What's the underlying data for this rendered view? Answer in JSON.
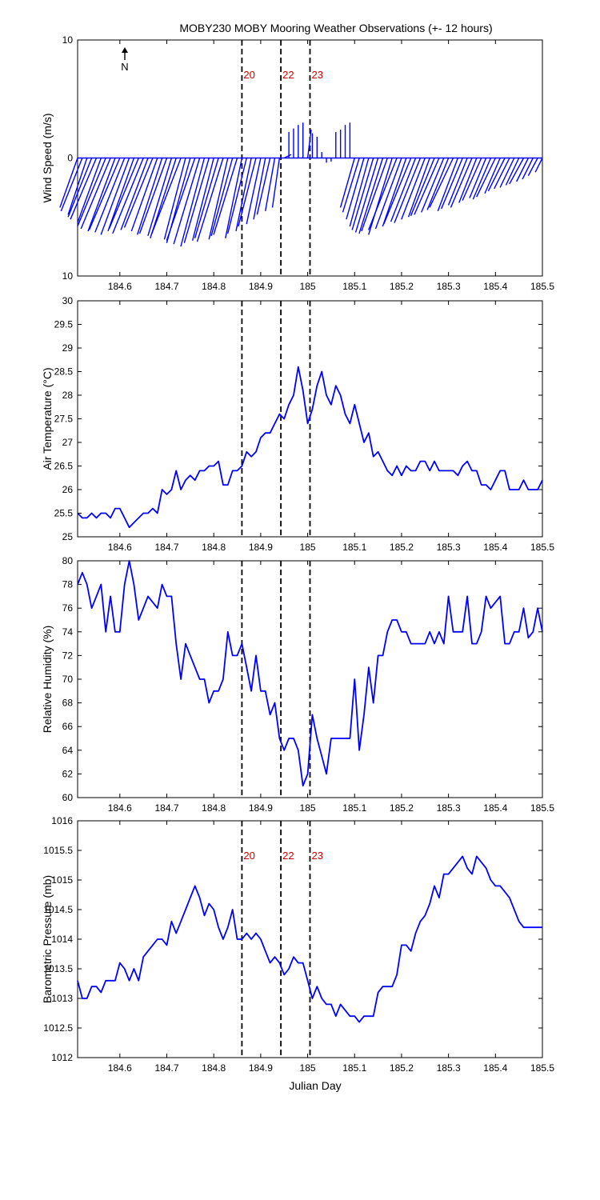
{
  "title": "MOBY230 MOBY Mooring Weather Observations (+- 12 hours)",
  "north_label": "N",
  "xlabel": "Julian Day",
  "xlim": [
    184.51,
    185.5
  ],
  "xticks": [
    184.6,
    184.7,
    184.8,
    184.9,
    185,
    185.1,
    185.2,
    185.3,
    185.4,
    185.5
  ],
  "xtick_labels": [
    "184.6",
    "184.7",
    "184.8",
    "184.9",
    "185",
    "185.1",
    "185.2",
    "185.3",
    "185.4",
    "185.5"
  ],
  "colors": {
    "series": "#0000ff",
    "marker_label": "#cc0000",
    "axes": "#000000"
  },
  "chart_data": [
    {
      "type": "line",
      "subtype": "wind-stick",
      "ylabel": "Wind Speed (m/s)",
      "ylim": [
        -10,
        10
      ],
      "ytick_labels": [
        "10",
        "0",
        "10"
      ],
      "ytick_values": [
        10,
        0,
        -10
      ],
      "markers": [
        {
          "x": 184.86,
          "label": "20"
        },
        {
          "x": 184.943,
          "label": "22"
        },
        {
          "x": 185.005,
          "label": "23"
        }
      ],
      "wind": {
        "x": [
          184.51,
          184.52,
          184.53,
          184.54,
          184.55,
          184.56,
          184.57,
          184.58,
          184.59,
          184.6,
          184.61,
          184.62,
          184.63,
          184.64,
          184.65,
          184.66,
          184.67,
          184.68,
          184.69,
          184.7,
          184.71,
          184.72,
          184.73,
          184.74,
          184.75,
          184.76,
          184.77,
          184.78,
          184.79,
          184.8,
          184.81,
          184.82,
          184.83,
          184.84,
          184.85,
          184.86,
          184.87,
          184.88,
          184.89,
          184.9,
          184.91,
          184.92,
          184.93,
          184.94,
          184.95,
          184.96,
          184.97,
          184.98,
          184.99,
          185,
          185.01,
          185.02,
          185.03,
          185.04,
          185.05,
          185.06,
          185.07,
          185.08,
          185.09,
          185.1,
          185.11,
          185.12,
          185.13,
          185.14,
          185.15,
          185.16,
          185.17,
          185.18,
          185.19,
          185.2,
          185.21,
          185.22,
          185.23,
          185.24,
          185.25,
          185.26,
          185.27,
          185.28,
          185.29,
          185.3,
          185.31,
          185.32,
          185.33,
          185.34,
          185.35,
          185.36,
          185.37,
          185.38,
          185.39,
          185.4,
          185.41,
          185.42,
          185.43,
          185.44,
          185.45,
          185.46,
          185.47,
          185.48,
          185.49,
          185.5
        ],
        "u": [
          -1.5,
          -1.8,
          -1.6,
          -2,
          -2.2,
          -2,
          -2.4,
          -2.5,
          -2.3,
          -2.6,
          -2.5,
          -2.4,
          -2.2,
          -2.5,
          -2.6,
          -2.3,
          -2.4,
          -2.2,
          -2.1,
          -2.3,
          -2,
          -2.2,
          -2.5,
          -1.8,
          -2,
          -2.4,
          -2.2,
          -2,
          -2.1,
          -1.8,
          -2,
          -2.2,
          -1.6,
          -1.8,
          -2,
          -1.4,
          -1.6,
          -1.3,
          -1.5,
          -1.2,
          -1,
          -1.1,
          -0.8,
          -0.6,
          0.6,
          0,
          0,
          0,
          0,
          0.3,
          0,
          0,
          0,
          0,
          0,
          0,
          0,
          0,
          0,
          -1.2,
          -1.4,
          -1.5,
          -1.6,
          -1.8,
          -1.9,
          -2,
          -2.2,
          -2,
          -2.4,
          -2.2,
          -2,
          -2.3,
          -2.1,
          -2.2,
          -2,
          -1.8,
          -2,
          -2.1,
          -1.9,
          -1.8,
          -2,
          -1.7,
          -1.8,
          -1.6,
          -1.8,
          -1.5,
          -1.6,
          -1.4,
          -1.5,
          -1.6,
          -1.3,
          -1.4,
          -1.3,
          -1.2,
          -1.1,
          -1.2,
          -1,
          -0.9,
          -0.8,
          -0.6
        ],
        "v": [
          -4.2,
          -4.5,
          -4.8,
          -5,
          -5.2,
          -5.5,
          -5.8,
          -6,
          -6.2,
          -6.1,
          -6.3,
          -6.5,
          -6.2,
          -6,
          -6.4,
          -6.1,
          -5.9,
          -6.2,
          -6.5,
          -6.4,
          -6.6,
          -6.8,
          -6.5,
          -6.9,
          -7.2,
          -7,
          -7.3,
          -7.5,
          -7.2,
          -7,
          -6.8,
          -7.1,
          -6.9,
          -6.6,
          -6.5,
          -6.8,
          -6.4,
          -6.2,
          -5.8,
          -5.6,
          -5.2,
          -4.8,
          -4.5,
          -4.2,
          0.3,
          2.2,
          2.5,
          2.8,
          3,
          2.4,
          2.1,
          1.8,
          0.5,
          -0.4,
          -0.3,
          2.2,
          2.4,
          2.8,
          3,
          -4.2,
          -4.6,
          -5.2,
          -5.8,
          -6.1,
          -6.3,
          -6.4,
          -6.2,
          -6.5,
          -6.1,
          -6,
          -5.8,
          -5.6,
          -5.4,
          -5.5,
          -5.2,
          -5,
          -4.9,
          -4.8,
          -4.6,
          -4.4,
          -4.2,
          -4.5,
          -4.3,
          -4,
          -4.2,
          -3.8,
          -3.6,
          -3.4,
          -3.5,
          -3.3,
          -3,
          -2.8,
          -2.6,
          -2.5,
          -2.3,
          -2.2,
          -2,
          -1.8,
          -1.5,
          -1.2
        ]
      }
    },
    {
      "type": "line",
      "ylabel": "Air Temperature (°C)",
      "ylim": [
        25,
        30
      ],
      "ytick_labels": [
        "25",
        "25.5",
        "26",
        "26.5",
        "27",
        "27.5",
        "28",
        "28.5",
        "29",
        "29.5",
        "30"
      ],
      "ytick_values": [
        25,
        25.5,
        26,
        26.5,
        27,
        27.5,
        28,
        28.5,
        29,
        29.5,
        30
      ],
      "markers": [
        {
          "x": 184.86,
          "label": ""
        },
        {
          "x": 184.943,
          "label": ""
        },
        {
          "x": 185.005,
          "label": ""
        }
      ],
      "x": [
        184.51,
        184.52,
        184.53,
        184.54,
        184.55,
        184.56,
        184.57,
        184.58,
        184.59,
        184.6,
        184.61,
        184.62,
        184.63,
        184.64,
        184.65,
        184.66,
        184.67,
        184.68,
        184.69,
        184.7,
        184.71,
        184.72,
        184.73,
        184.74,
        184.75,
        184.76,
        184.77,
        184.78,
        184.79,
        184.8,
        184.81,
        184.82,
        184.83,
        184.84,
        184.85,
        184.86,
        184.87,
        184.88,
        184.89,
        184.9,
        184.91,
        184.92,
        184.93,
        184.94,
        184.95,
        184.96,
        184.97,
        184.98,
        184.99,
        185,
        185.01,
        185.02,
        185.03,
        185.04,
        185.05,
        185.06,
        185.07,
        185.08,
        185.09,
        185.1,
        185.11,
        185.12,
        185.13,
        185.14,
        185.15,
        185.16,
        185.17,
        185.18,
        185.19,
        185.2,
        185.21,
        185.22,
        185.23,
        185.24,
        185.25,
        185.26,
        185.27,
        185.28,
        185.29,
        185.3,
        185.31,
        185.32,
        185.33,
        185.34,
        185.35,
        185.36,
        185.37,
        185.38,
        185.39,
        185.4,
        185.41,
        185.42,
        185.43,
        185.44,
        185.45,
        185.46,
        185.47,
        185.48,
        185.49,
        185.5
      ],
      "y": [
        25.5,
        25.4,
        25.4,
        25.5,
        25.4,
        25.5,
        25.5,
        25.4,
        25.6,
        25.6,
        25.4,
        25.2,
        25.3,
        25.4,
        25.5,
        25.5,
        25.6,
        25.5,
        26,
        25.9,
        26,
        26.4,
        26,
        26.2,
        26.3,
        26.2,
        26.4,
        26.4,
        26.5,
        26.5,
        26.6,
        26.1,
        26.1,
        26.4,
        26.4,
        26.5,
        26.8,
        26.7,
        26.8,
        27.1,
        27.2,
        27.2,
        27.4,
        27.6,
        27.5,
        27.8,
        28,
        28.6,
        28.1,
        27.4,
        27.7,
        28.2,
        28.5,
        28,
        27.8,
        28.2,
        28,
        27.6,
        27.4,
        27.8,
        27.4,
        27,
        27.2,
        26.7,
        26.8,
        26.6,
        26.4,
        26.3,
        26.5,
        26.3,
        26.5,
        26.4,
        26.4,
        26.6,
        26.6,
        26.4,
        26.6,
        26.4,
        26.4,
        26.4,
        26.4,
        26.3,
        26.5,
        26.6,
        26.4,
        26.4,
        26.1,
        26.1,
        26,
        26.2,
        26.4,
        26.4,
        26,
        26,
        26,
        26.2,
        26,
        26,
        26,
        26.2
      ]
    },
    {
      "type": "line",
      "ylabel": "Relative Humidity (%)",
      "ylim": [
        60,
        80
      ],
      "ytick_labels": [
        "60",
        "62",
        "64",
        "66",
        "68",
        "70",
        "72",
        "74",
        "76",
        "78",
        "80"
      ],
      "ytick_values": [
        60,
        62,
        64,
        66,
        68,
        70,
        72,
        74,
        76,
        78,
        80
      ],
      "markers": [
        {
          "x": 184.86,
          "label": ""
        },
        {
          "x": 184.943,
          "label": ""
        },
        {
          "x": 185.005,
          "label": ""
        }
      ],
      "x": [
        184.51,
        184.52,
        184.53,
        184.54,
        184.55,
        184.56,
        184.57,
        184.58,
        184.59,
        184.6,
        184.61,
        184.62,
        184.63,
        184.64,
        184.65,
        184.66,
        184.67,
        184.68,
        184.69,
        184.7,
        184.71,
        184.72,
        184.73,
        184.74,
        184.75,
        184.76,
        184.77,
        184.78,
        184.79,
        184.8,
        184.81,
        184.82,
        184.83,
        184.84,
        184.85,
        184.86,
        184.87,
        184.88,
        184.89,
        184.9,
        184.91,
        184.92,
        184.93,
        184.94,
        184.95,
        184.96,
        184.97,
        184.98,
        184.99,
        185,
        185.01,
        185.02,
        185.03,
        185.04,
        185.05,
        185.06,
        185.07,
        185.08,
        185.09,
        185.1,
        185.11,
        185.12,
        185.13,
        185.14,
        185.15,
        185.16,
        185.17,
        185.18,
        185.19,
        185.2,
        185.21,
        185.22,
        185.23,
        185.24,
        185.25,
        185.26,
        185.27,
        185.28,
        185.29,
        185.3,
        185.31,
        185.32,
        185.33,
        185.34,
        185.35,
        185.36,
        185.37,
        185.38,
        185.39,
        185.4,
        185.41,
        185.42,
        185.43,
        185.44,
        185.45,
        185.46,
        185.47,
        185.48,
        185.49,
        185.5
      ],
      "y": [
        78,
        79,
        78,
        76,
        77,
        78,
        74,
        77,
        74,
        74,
        78,
        80,
        78,
        75,
        76,
        77,
        76.5,
        76,
        78,
        77,
        77,
        73,
        70,
        73,
        72,
        71,
        70,
        70,
        68,
        69,
        69,
        70,
        74,
        72,
        72,
        73,
        71,
        69,
        72,
        69,
        69,
        67,
        68,
        65,
        64,
        65,
        65,
        64,
        61,
        62,
        67,
        65,
        63.5,
        62,
        65,
        65,
        65,
        65,
        65,
        70,
        64,
        67,
        71,
        68,
        72,
        72,
        74,
        75,
        75,
        74,
        74,
        73,
        73,
        73,
        73,
        74,
        73,
        74,
        73,
        77,
        74,
        74,
        74,
        77,
        73,
        73,
        74,
        77,
        76,
        76.5,
        77,
        73,
        73,
        74,
        74,
        76,
        73.5,
        74,
        76,
        74
      ]
    },
    {
      "type": "line",
      "ylabel": "Barometric Pressure (mb)",
      "ylim": [
        1012,
        1016
      ],
      "ytick_labels": [
        "1012",
        "1012.5",
        "1013",
        "1013.5",
        "1014",
        "1014.5",
        "1015",
        "1015.5",
        "1016"
      ],
      "ytick_values": [
        1012,
        1012.5,
        1013,
        1013.5,
        1014,
        1014.5,
        1015,
        1015.5,
        1016
      ],
      "markers": [
        {
          "x": 184.86,
          "label": "20"
        },
        {
          "x": 184.943,
          "label": "22"
        },
        {
          "x": 185.005,
          "label": "23"
        }
      ],
      "x": [
        184.51,
        184.52,
        184.53,
        184.54,
        184.55,
        184.56,
        184.57,
        184.58,
        184.59,
        184.6,
        184.61,
        184.62,
        184.63,
        184.64,
        184.65,
        184.66,
        184.67,
        184.68,
        184.69,
        184.7,
        184.71,
        184.72,
        184.73,
        184.74,
        184.75,
        184.76,
        184.77,
        184.78,
        184.79,
        184.8,
        184.81,
        184.82,
        184.83,
        184.84,
        184.85,
        184.86,
        184.87,
        184.88,
        184.89,
        184.9,
        184.91,
        184.92,
        184.93,
        184.94,
        184.95,
        184.96,
        184.97,
        184.98,
        184.99,
        185,
        185.01,
        185.02,
        185.03,
        185.04,
        185.05,
        185.06,
        185.07,
        185.08,
        185.09,
        185.1,
        185.11,
        185.12,
        185.13,
        185.14,
        185.15,
        185.16,
        185.17,
        185.18,
        185.19,
        185.2,
        185.21,
        185.22,
        185.23,
        185.24,
        185.25,
        185.26,
        185.27,
        185.28,
        185.29,
        185.3,
        185.31,
        185.32,
        185.33,
        185.34,
        185.35,
        185.36,
        185.37,
        185.38,
        185.39,
        185.4,
        185.41,
        185.42,
        185.43,
        185.44,
        185.45,
        185.46,
        185.47,
        185.48,
        185.49,
        185.5
      ],
      "y": [
        1013.3,
        1013,
        1013,
        1013.2,
        1013.2,
        1013.1,
        1013.3,
        1013.3,
        1013.3,
        1013.6,
        1013.5,
        1013.3,
        1013.5,
        1013.3,
        1013.7,
        1013.8,
        1013.9,
        1014,
        1014,
        1013.9,
        1014.3,
        1014.1,
        1014.3,
        1014.5,
        1014.7,
        1014.9,
        1014.7,
        1014.4,
        1014.6,
        1014.5,
        1014.2,
        1014,
        1014.2,
        1014.5,
        1014,
        1014,
        1014.1,
        1014,
        1014.1,
        1014,
        1013.8,
        1013.6,
        1013.7,
        1013.6,
        1013.4,
        1013.5,
        1013.7,
        1013.6,
        1013.6,
        1013.3,
        1013,
        1013.2,
        1013,
        1012.9,
        1012.9,
        1012.7,
        1012.9,
        1012.8,
        1012.7,
        1012.7,
        1012.6,
        1012.7,
        1012.7,
        1012.7,
        1013.1,
        1013.2,
        1013.2,
        1013.2,
        1013.4,
        1013.9,
        1013.9,
        1013.8,
        1014.1,
        1014.3,
        1014.4,
        1014.6,
        1014.9,
        1014.7,
        1015.1,
        1015.1,
        1015.2,
        1015.3,
        1015.4,
        1015.2,
        1015.1,
        1015.4,
        1015.3,
        1015.2,
        1015,
        1014.9,
        1014.9,
        1014.8,
        1014.7,
        1014.5,
        1014.3,
        1014.2,
        1014.2,
        1014.2,
        1014.2,
        1014.2
      ]
    }
  ]
}
